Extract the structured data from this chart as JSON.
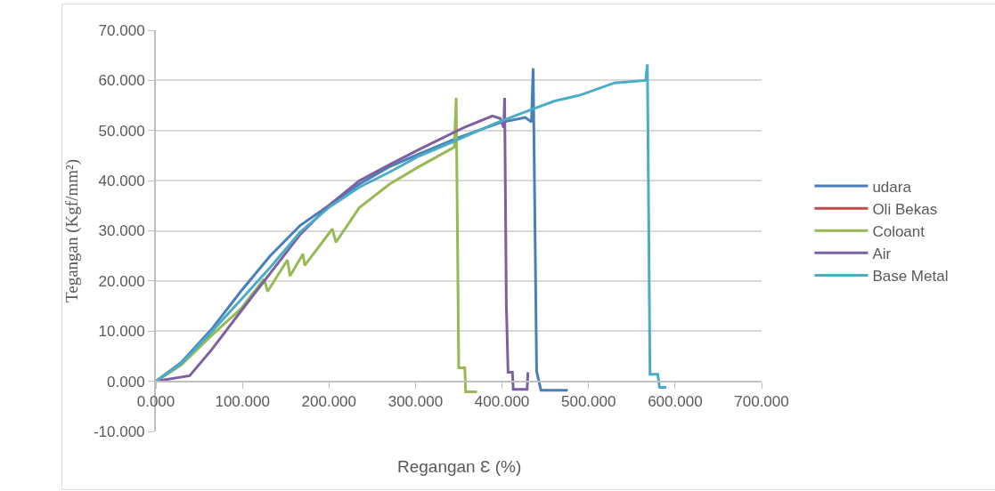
{
  "chart_data": {
    "type": "line",
    "xlabel": "Regangan Ɛ (%)",
    "ylabel": "Tegangan (Kgf/mm²)",
    "xlim": [
      0,
      700
    ],
    "ylim": [
      -10,
      70
    ],
    "xticks": [
      {
        "value": 0,
        "label": "0.000"
      },
      {
        "value": 100,
        "label": "100.000"
      },
      {
        "value": 200,
        "label": "200.000"
      },
      {
        "value": 300,
        "label": "300.000"
      },
      {
        "value": 400,
        "label": "400.000"
      },
      {
        "value": 500,
        "label": "500.000"
      },
      {
        "value": 600,
        "label": "600.000"
      },
      {
        "value": 700,
        "label": "700.000"
      }
    ],
    "yticks": [
      {
        "value": -10,
        "label": "-10.000"
      },
      {
        "value": 0,
        "label": "0.000"
      },
      {
        "value": 10,
        "label": "10.000"
      },
      {
        "value": 20,
        "label": "20.000"
      },
      {
        "value": 30,
        "label": "30.000"
      },
      {
        "value": 40,
        "label": "40.000"
      },
      {
        "value": 50,
        "label": "50.000"
      },
      {
        "value": 60,
        "label": "60.000"
      },
      {
        "value": 70,
        "label": "70.000"
      }
    ],
    "grid": "y",
    "legend": "right",
    "marker": "none",
    "line_style": "solid",
    "series": [
      {
        "name": "udara",
        "color": "#4a7ebb",
        "x": [
          0,
          29,
          64,
          98,
          132,
          167,
          201,
          235,
          270,
          304,
          350,
          400,
          427,
          434,
          436,
          440,
          445,
          476
        ],
        "values": [
          0,
          3.7,
          10.3,
          17.9,
          25.0,
          31.1,
          35.2,
          39.3,
          42.8,
          45.3,
          48.6,
          51.7,
          52.6,
          51.7,
          62.4,
          2.0,
          -1.8,
          -1.8
        ]
      },
      {
        "name": "Oli Bekas",
        "color": "#be4b48"
      },
      {
        "name": "Coloant",
        "color": "#98b954",
        "x": [
          0,
          29,
          64,
          98,
          125,
          129,
          152,
          155,
          170,
          172,
          204,
          208,
          235,
          270,
          304,
          345,
          347,
          350,
          357,
          358,
          371
        ],
        "values": [
          0,
          3.2,
          9.1,
          14.4,
          20.4,
          17.9,
          24.2,
          21.0,
          25.4,
          23.1,
          30.4,
          27.7,
          34.6,
          39.3,
          42.8,
          46.7,
          56.5,
          2.7,
          2.7,
          -2.1,
          -2.1
        ]
      },
      {
        "name": "Air",
        "color": "#7d60a0",
        "x": [
          0,
          39,
          64,
          98,
          132,
          167,
          201,
          235,
          270,
          304,
          356,
          389,
          398,
          402,
          403,
          405,
          407,
          412,
          413,
          429,
          430
        ],
        "values": [
          0,
          1.1,
          6.2,
          13.9,
          21.5,
          29.3,
          35.2,
          40.0,
          43.2,
          46.2,
          50.6,
          52.9,
          52.4,
          50.6,
          56.5,
          15.1,
          1.8,
          1.8,
          -1.6,
          -1.6,
          1.8
        ]
      },
      {
        "name": "Base Metal",
        "color": "#4bacc6",
        "x": [
          0,
          29,
          64,
          98,
          132,
          167,
          201,
          235,
          270,
          304,
          348,
          393,
          434,
          461,
          489,
          530,
          566,
          568,
          571,
          580,
          582,
          590
        ],
        "values": [
          0,
          3.5,
          9.8,
          16.2,
          22.7,
          29.8,
          34.8,
          38.7,
          41.7,
          44.9,
          48.1,
          51.5,
          54.2,
          55.9,
          57.0,
          59.5,
          60.0,
          63.2,
          1.4,
          1.4,
          -1.2,
          -1.2
        ]
      }
    ]
  }
}
